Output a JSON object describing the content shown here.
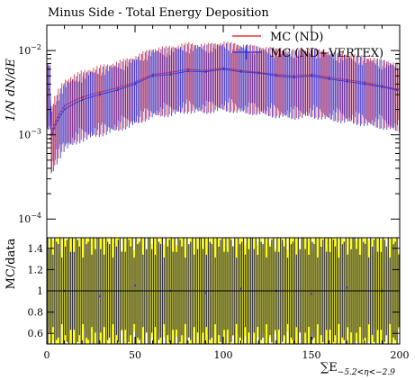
{
  "chart_data": [
    {
      "type": "histogram",
      "title": "Minus Side - Total Energy Deposition",
      "ylabel": "1/N dN/dE",
      "yscale": "log",
      "ylim": [
        6e-05,
        0.02
      ],
      "xlim": [
        0,
        200
      ],
      "yticks": [
        {
          "value": 0.0001,
          "base": "10",
          "exp": "−4"
        },
        {
          "value": 0.001,
          "base": "10",
          "exp": "−3"
        },
        {
          "value": 0.01,
          "base": "10",
          "exp": "−2"
        }
      ],
      "legend": {
        "position": "top-right",
        "entries": [
          {
            "label": "MC (ND)",
            "color": "#e8343a"
          },
          {
            "label": "MC (ND+VERTEX)",
            "color": "#3a3ad6"
          }
        ]
      },
      "series": [
        {
          "name": "MC (ND)",
          "color": "#e8343a",
          "x": [
            2,
            10,
            20,
            30,
            40,
            50,
            60,
            70,
            80,
            90,
            100,
            110,
            120,
            130,
            140,
            150,
            160,
            170,
            180,
            190,
            198
          ],
          "y": [
            0.001,
            0.0022,
            0.0028,
            0.0032,
            0.0036,
            0.0042,
            0.0052,
            0.0055,
            0.006,
            0.0058,
            0.0062,
            0.0058,
            0.0055,
            0.0052,
            0.005,
            0.0052,
            0.0048,
            0.0045,
            0.0042,
            0.0038,
            0.0035
          ]
        },
        {
          "name": "MC (ND+VERTEX)",
          "color": "#3a3ad6",
          "x": [
            2,
            10,
            20,
            30,
            40,
            50,
            60,
            70,
            80,
            90,
            100,
            110,
            120,
            130,
            140,
            150,
            160,
            170,
            180,
            190,
            198
          ],
          "y": [
            0.0009,
            0.002,
            0.0026,
            0.003,
            0.0034,
            0.004,
            0.005,
            0.0052,
            0.0057,
            0.0056,
            0.006,
            0.0056,
            0.0054,
            0.005,
            0.0048,
            0.005,
            0.0046,
            0.0043,
            0.004,
            0.0037,
            0.0034
          ]
        }
      ]
    },
    {
      "type": "histogram",
      "ylabel": "MC/data",
      "xlabel": "∑E",
      "xlabel_sub": "−5.2<η<−2.9",
      "ylim": [
        0.5,
        1.5
      ],
      "xlim": [
        0,
        200
      ],
      "yticks": [
        "0.6",
        "0.8",
        "1",
        "1.2",
        "1.4"
      ],
      "xticks": [
        "0",
        "50",
        "100",
        "150",
        "200"
      ],
      "reference_line": 1,
      "band_color": "#ffff00",
      "line_color": "#3a3ad6",
      "series": [
        {
          "name": "MC/data",
          "x": [
            10,
            30,
            50,
            70,
            90,
            110,
            130,
            150,
            170,
            190
          ],
          "y": [
            1.0,
            0.95,
            1.05,
            1.0,
            0.98,
            1.02,
            1.0,
            0.97,
            1.03,
            1.0
          ]
        }
      ]
    }
  ]
}
